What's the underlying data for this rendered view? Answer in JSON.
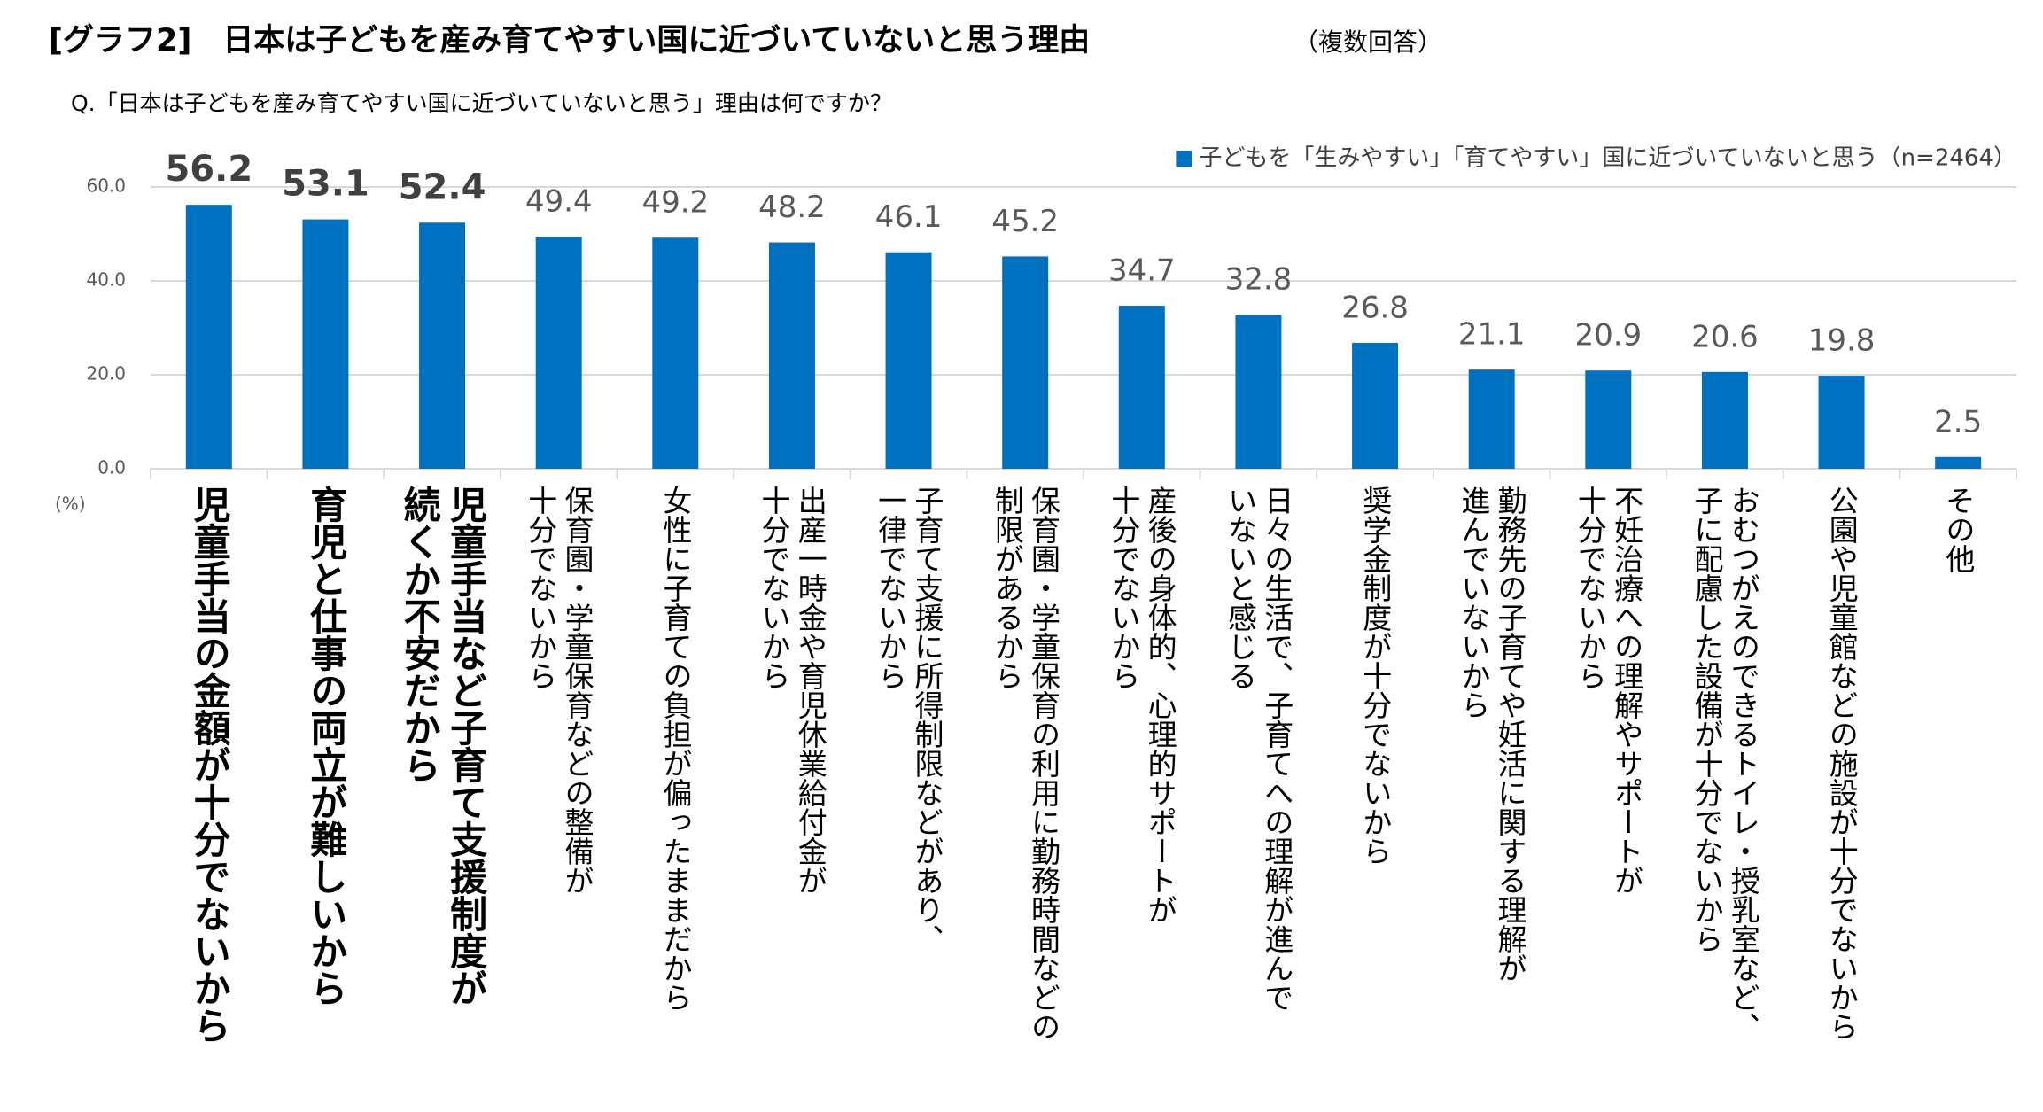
{
  "chart_data": {
    "type": "bar",
    "title": "[グラフ2]　日本は子どもを産み育てやすい国に近づいていないと思う理由",
    "title_note": "（複数回答）",
    "subtitle": "Q.「日本は子どもを産み育てやすい国に近づいていないと思う」理由は何ですか？",
    "y_unit": "(%)",
    "categories": [
      "児童手当の金額が十分でないから",
      "育児と仕事の両立が難しいから",
      "児童手当など子育て支援制度が\n続くか不安だから",
      "保育園・学童保育などの整備が\n十分でないから",
      "女性に子育ての負担が偏ったままだから",
      "出産一時金や育児休業給付金が\n十分でないから",
      "子育て支援に所得制限などがあり、\n一律でないから",
      "保育園・学童保育の利用に勤務時間などの\n制限があるから",
      "産後の身体的、心理的サポートが\n十分でないから",
      "日々の生活で、子育てへの理解が進んで\nいないと感じる",
      "奨学金制度が十分でないから",
      "勤務先の子育てや妊活に関する理解が\n進んでいないから",
      "不妊治療への理解やサポートが\n十分でないから",
      "おむつがえのできるトイレ・授乳室など、\n子に配慮した設備が十分でないから",
      "公園や児童館などの施設が十分でないから",
      "その他"
    ],
    "series": [
      {
        "name": "子どもを「生みやすい」「育てやすい」国に近づいていないと思う（n=2464）",
        "color": "#0070c0",
        "values": [
          56.2,
          53.1,
          52.4,
          49.4,
          49.2,
          48.2,
          46.1,
          45.2,
          34.7,
          32.8,
          26.8,
          21.1,
          20.9,
          20.6,
          19.8,
          2.5
        ]
      }
    ],
    "ylim": [
      0,
      60
    ],
    "yticks": [
      {
        "value": 0,
        "label": "0.0"
      },
      {
        "value": 20,
        "label": "20.0"
      },
      {
        "value": 40,
        "label": "40.0"
      },
      {
        "value": 60,
        "label": "60.0"
      }
    ],
    "grid": true,
    "legend": "top-right"
  }
}
